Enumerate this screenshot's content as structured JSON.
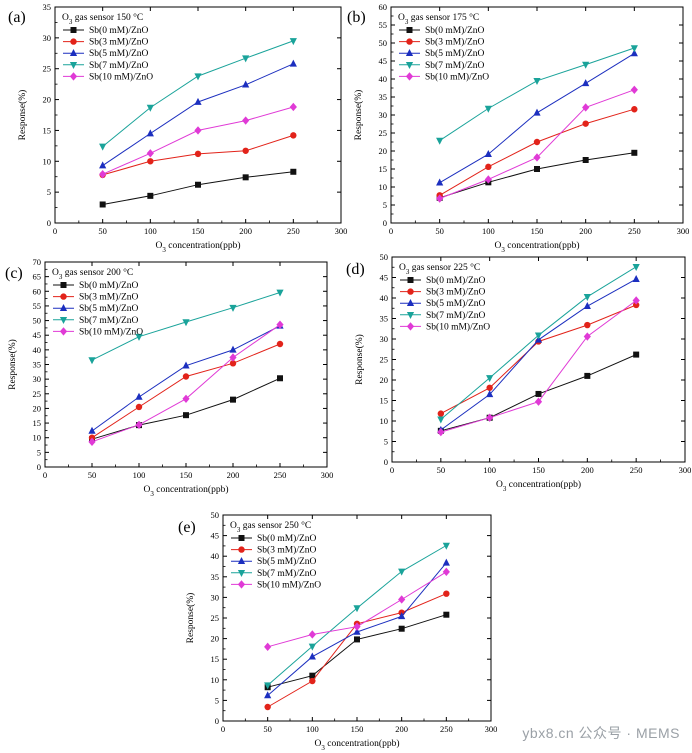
{
  "colors": {
    "Sb(0 mM)/ZnO": "#111111",
    "Sb(3 mM)/ZnO": "#e2231a",
    "Sb(5 mM)/ZnO": "#1c2fbf",
    "Sb(7 mM)/ZnO": "#1aa39a",
    "Sb(10 mM)/ZnO": "#e03ad6"
  },
  "markers": {
    "Sb(0 mM)/ZnO": "square",
    "Sb(3 mM)/ZnO": "circle",
    "Sb(5 mM)/ZnO": "triangle-up",
    "Sb(7 mM)/ZnO": "triangle-down",
    "Sb(10 mM)/ZnO": "diamond"
  },
  "watermark": "ybx8.cn  公众号 · MEMS",
  "chart_data": [
    {
      "type": "line",
      "panel_label": "(a)",
      "title_prefix": "O",
      "title_sub": "3",
      "title_suffix": " gas sensor 150 °C",
      "xlabel_prefix": "O",
      "xlabel_sub": "3",
      "xlabel_suffix": " concentration(ppb)",
      "ylabel": "Response(%)",
      "x": [
        50,
        100,
        150,
        200,
        250
      ],
      "xlim": [
        0,
        300
      ],
      "xticks": [
        0,
        50,
        100,
        150,
        200,
        250,
        300
      ],
      "ylim": [
        0,
        35
      ],
      "yticks": [
        0,
        5,
        10,
        15,
        20,
        25,
        30,
        35
      ],
      "legend": "top-left",
      "series": [
        {
          "name": "Sb(0 mM)/ZnO",
          "values": [
            3.0,
            4.4,
            6.2,
            7.4,
            8.3
          ]
        },
        {
          "name": "Sb(3 mM)/ZnO",
          "values": [
            7.8,
            10.0,
            11.2,
            11.7,
            14.2
          ]
        },
        {
          "name": "Sb(5 mM)/ZnO",
          "values": [
            9.3,
            14.5,
            19.6,
            22.4,
            25.8
          ]
        },
        {
          "name": "Sb(7 mM)/ZnO",
          "values": [
            12.4,
            18.7,
            23.8,
            26.7,
            29.5
          ]
        },
        {
          "name": "Sb(10 mM)/ZnO",
          "values": [
            7.9,
            11.3,
            15.0,
            16.6,
            18.8
          ]
        }
      ]
    },
    {
      "type": "line",
      "panel_label": "(b)",
      "title_prefix": "O",
      "title_sub": "3",
      "title_suffix": " gas sensor 175 °C",
      "xlabel_prefix": "O",
      "xlabel_sub": "3",
      "xlabel_suffix": " concentration(ppb)",
      "ylabel": "Response(%)",
      "x": [
        50,
        100,
        150,
        200,
        250
      ],
      "xlim": [
        0,
        300
      ],
      "xticks": [
        0,
        50,
        100,
        150,
        200,
        250,
        300
      ],
      "ylim": [
        0,
        60
      ],
      "yticks": [
        0,
        5,
        10,
        15,
        20,
        25,
        30,
        35,
        40,
        45,
        50,
        55,
        60
      ],
      "legend": "top-left",
      "series": [
        {
          "name": "Sb(0 mM)/ZnO",
          "values": [
            7.0,
            11.3,
            15.0,
            17.5,
            19.5
          ]
        },
        {
          "name": "Sb(3 mM)/ZnO",
          "values": [
            7.7,
            15.6,
            22.5,
            27.6,
            31.6
          ]
        },
        {
          "name": "Sb(5 mM)/ZnO",
          "values": [
            11.2,
            19.1,
            30.6,
            38.8,
            47.1
          ]
        },
        {
          "name": "Sb(7 mM)/ZnO",
          "values": [
            22.9,
            31.8,
            39.5,
            44.0,
            48.6
          ]
        },
        {
          "name": "Sb(10 mM)/ZnO",
          "values": [
            6.8,
            12.1,
            18.2,
            32.1,
            37.0
          ]
        }
      ]
    },
    {
      "type": "line",
      "panel_label": "(c)",
      "title_prefix": "O",
      "title_sub": "3",
      "title_suffix": " gas sensor 200 °C",
      "xlabel_prefix": "O",
      "xlabel_sub": "3",
      "xlabel_suffix": " concentration(ppb)",
      "ylabel": "Response(%)",
      "x": [
        50,
        100,
        150,
        200,
        250
      ],
      "xlim": [
        0,
        300
      ],
      "xticks": [
        0,
        50,
        100,
        150,
        200,
        250,
        300
      ],
      "ylim": [
        0,
        70
      ],
      "yticks": [
        0,
        5,
        10,
        15,
        20,
        25,
        30,
        35,
        40,
        45,
        50,
        55,
        60,
        65,
        70
      ],
      "legend": "top-left",
      "series": [
        {
          "name": "Sb(0 mM)/ZnO",
          "values": [
            9.5,
            14.3,
            17.7,
            23.0,
            30.3
          ]
        },
        {
          "name": "Sb(3 mM)/ZnO",
          "values": [
            10.0,
            20.5,
            30.9,
            35.4,
            42.0
          ]
        },
        {
          "name": "Sb(5 mM)/ZnO",
          "values": [
            12.3,
            23.9,
            34.6,
            40.0,
            48.2
          ]
        },
        {
          "name": "Sb(7 mM)/ZnO",
          "values": [
            36.5,
            44.5,
            49.5,
            54.4,
            59.6
          ]
        },
        {
          "name": "Sb(10 mM)/ZnO",
          "values": [
            8.6,
            14.4,
            23.3,
            37.4,
            48.6
          ]
        }
      ]
    },
    {
      "type": "line",
      "panel_label": "(d)",
      "title_prefix": "O",
      "title_sub": "3",
      "title_suffix": " gas sensor 225 °C",
      "xlabel_prefix": "O",
      "xlabel_sub": "3",
      "xlabel_suffix": " concentration(ppb)",
      "ylabel": "Response(%)",
      "x": [
        50,
        100,
        150,
        200,
        250
      ],
      "xlim": [
        0,
        300
      ],
      "xticks": [
        0,
        50,
        100,
        150,
        200,
        250,
        300
      ],
      "ylim": [
        0,
        50
      ],
      "yticks": [
        0,
        5,
        10,
        15,
        20,
        25,
        30,
        35,
        40,
        45,
        50
      ],
      "legend": "top-left",
      "series": [
        {
          "name": "Sb(0 mM)/ZnO",
          "values": [
            7.6,
            10.8,
            16.6,
            21.0,
            26.2
          ]
        },
        {
          "name": "Sb(3 mM)/ZnO",
          "values": [
            11.8,
            18.1,
            29.4,
            33.4,
            38.3
          ]
        },
        {
          "name": "Sb(5 mM)/ZnO",
          "values": [
            7.8,
            16.5,
            29.8,
            38.0,
            44.6
          ]
        },
        {
          "name": "Sb(7 mM)/ZnO",
          "values": [
            10.4,
            20.5,
            30.9,
            40.3,
            47.6
          ]
        },
        {
          "name": "Sb(10 mM)/ZnO",
          "values": [
            7.3,
            10.8,
            14.7,
            30.6,
            39.4
          ]
        }
      ]
    },
    {
      "type": "line",
      "panel_label": "(e)",
      "title_prefix": "O",
      "title_sub": "3",
      "title_suffix": " gas sensor 250 °C",
      "xlabel_prefix": "O",
      "xlabel_sub": "3",
      "xlabel_suffix": " concentration(ppb)",
      "ylabel": "Response(%)",
      "x": [
        50,
        100,
        150,
        200,
        250
      ],
      "xlim": [
        0,
        300
      ],
      "xticks": [
        0,
        50,
        100,
        150,
        200,
        250,
        300
      ],
      "ylim": [
        0,
        50
      ],
      "yticks": [
        0,
        5,
        10,
        15,
        20,
        25,
        30,
        35,
        40,
        45,
        50
      ],
      "legend": "top-left",
      "series": [
        {
          "name": "Sb(0 mM)/ZnO",
          "values": [
            8.2,
            11.0,
            19.8,
            22.4,
            25.8
          ]
        },
        {
          "name": "Sb(3 mM)/ZnO",
          "values": [
            3.4,
            9.7,
            23.6,
            26.3,
            30.9
          ]
        },
        {
          "name": "Sb(5 mM)/ZnO",
          "values": [
            6.2,
            15.6,
            21.6,
            25.4,
            38.4
          ]
        },
        {
          "name": "Sb(7 mM)/ZnO",
          "values": [
            8.7,
            18.1,
            27.4,
            36.3,
            42.6
          ]
        },
        {
          "name": "Sb(10 mM)/ZnO",
          "values": [
            18.0,
            21.0,
            22.9,
            29.5,
            36.2
          ]
        }
      ]
    }
  ]
}
